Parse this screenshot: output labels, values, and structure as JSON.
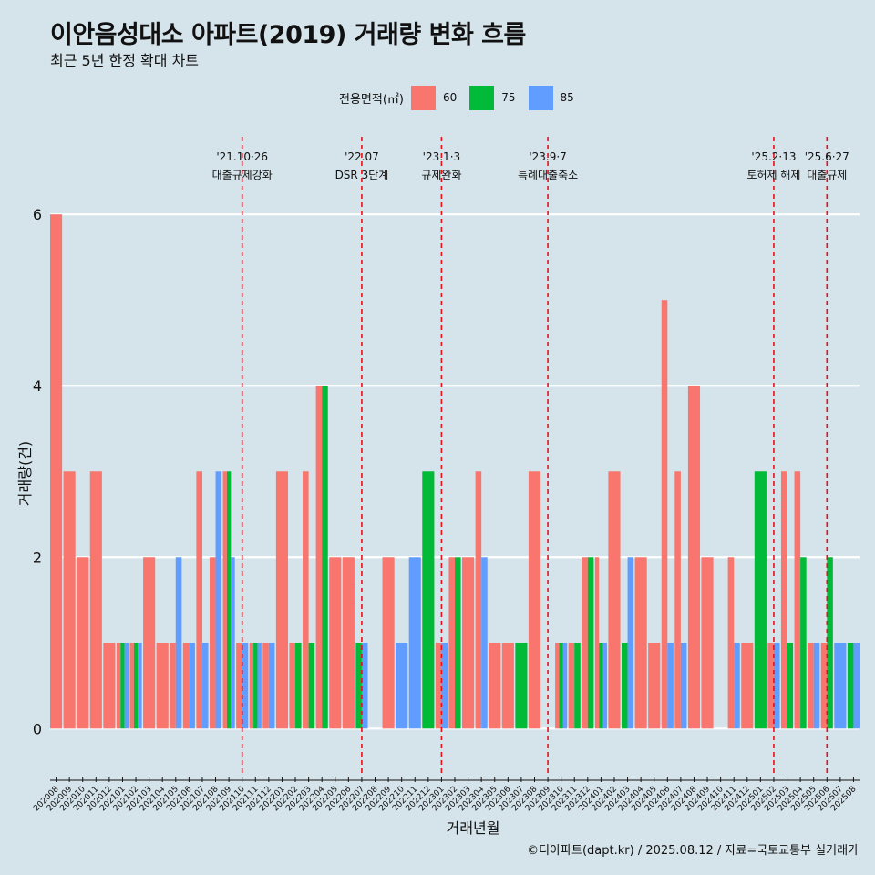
{
  "title": "이안음성대소 아파트(2019) 거래량 변화 흐름",
  "subtitle": "최근 5년 한정 확대 차트",
  "caption": "©디아파트(dapt.kr) / 2025.08.12 / 자료=국토교통부 실거래가",
  "legend": {
    "title": "전용면적(㎡)",
    "items": [
      {
        "label": "60",
        "color": "#F8766D"
      },
      {
        "label": "75",
        "color": "#00BA38"
      },
      {
        "label": "85",
        "color": "#619CFF"
      }
    ]
  },
  "chart_data": {
    "type": "bar",
    "xlabel": "거래년월",
    "ylabel": "거래량(건)",
    "ylim": [
      -0.55,
      6.8
    ],
    "yticks": [
      0,
      2,
      4,
      6
    ],
    "grid": true,
    "legend_position": "top",
    "categories": [
      "202008",
      "202009",
      "202010",
      "202011",
      "202012",
      "202101",
      "202102",
      "202103",
      "202104",
      "202105",
      "202106",
      "202107",
      "202108",
      "202109",
      "202110",
      "202111",
      "202112",
      "202201",
      "202202",
      "202203",
      "202204",
      "202205",
      "202206",
      "202207",
      "202208",
      "202209",
      "202210",
      "202211",
      "202212",
      "202301",
      "202302",
      "202303",
      "202304",
      "202305",
      "202306",
      "202307",
      "202308",
      "202309",
      "202310",
      "202311",
      "202312",
      "202401",
      "202402",
      "202403",
      "202404",
      "202405",
      "202406",
      "202407",
      "202408",
      "202409",
      "202410",
      "202411",
      "202412",
      "202501",
      "202502",
      "202503",
      "202504",
      "202505",
      "202506",
      "202507",
      "202508"
    ],
    "series": [
      {
        "name": "60",
        "color": "#F8766D",
        "values": [
          6,
          3,
          2,
          3,
          1,
          1,
          1,
          2,
          1,
          1,
          1,
          3,
          2,
          3,
          1,
          1,
          1,
          3,
          1,
          3,
          4,
          2,
          2,
          0,
          0,
          2,
          0,
          0,
          0,
          1,
          2,
          2,
          3,
          1,
          1,
          0,
          3,
          0,
          1,
          1,
          2,
          2,
          3,
          0,
          2,
          1,
          5,
          3,
          4,
          2,
          0,
          2,
          1,
          0,
          1,
          3,
          3,
          1,
          1,
          0,
          0
        ]
      },
      {
        "name": "75",
        "color": "#00BA38",
        "values": [
          0,
          0,
          0,
          0,
          0,
          1,
          1,
          0,
          0,
          0,
          0,
          0,
          0,
          3,
          0,
          1,
          0,
          0,
          1,
          1,
          4,
          0,
          0,
          1,
          0,
          0,
          0,
          0,
          3,
          0,
          2,
          0,
          0,
          0,
          0,
          1,
          0,
          0,
          1,
          1,
          2,
          1,
          0,
          1,
          0,
          0,
          0,
          0,
          0,
          0,
          0,
          0,
          0,
          3,
          0,
          1,
          2,
          0,
          2,
          0,
          1
        ]
      },
      {
        "name": "85",
        "color": "#619CFF",
        "values": [
          0,
          0,
          0,
          0,
          0,
          1,
          1,
          0,
          0,
          2,
          1,
          1,
          3,
          2,
          1,
          1,
          1,
          0,
          0,
          0,
          0,
          0,
          0,
          1,
          0,
          0,
          1,
          2,
          0,
          1,
          0,
          0,
          2,
          0,
          0,
          0,
          0,
          0,
          1,
          0,
          0,
          1,
          0,
          2,
          0,
          0,
          1,
          1,
          0,
          0,
          0,
          1,
          0,
          0,
          1,
          0,
          0,
          1,
          0,
          1,
          1
        ]
      }
    ],
    "annotations": [
      {
        "x": "202110",
        "date": "'21.10·26",
        "text": "대출규제강화"
      },
      {
        "x": "202207",
        "date": "'22.07",
        "text": "DSR 3단계"
      },
      {
        "x": "202301",
        "date": "'23.1·3",
        "text": "규제완화"
      },
      {
        "x": "202309",
        "date": "'23.9·7",
        "text": "특례대출축소"
      },
      {
        "x": "202502",
        "date": "'25.2·13",
        "text": "토허제 해제"
      },
      {
        "x": "202506",
        "date": "'25.6·27",
        "text": "대출규제"
      }
    ]
  }
}
